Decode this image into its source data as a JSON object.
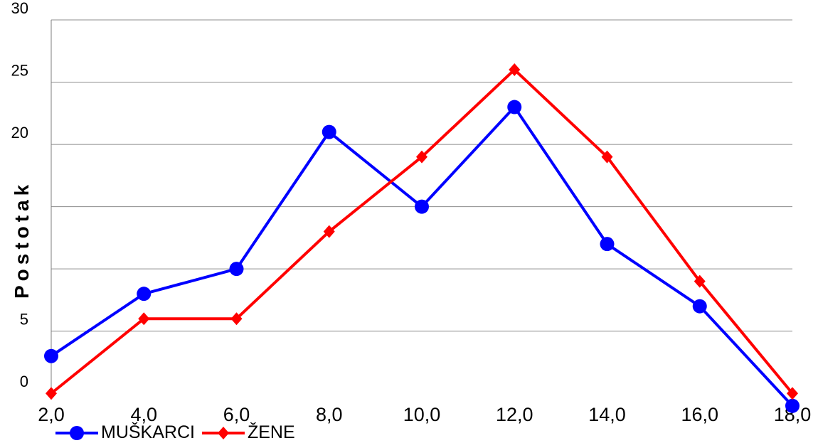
{
  "chart_data": {
    "type": "line",
    "title": "",
    "xlabel": "",
    "ylabel": "Postotak",
    "x": [
      "2,0",
      "4,0",
      "6,0",
      "8,0",
      "10,0",
      "12,0",
      "14,0",
      "16,0",
      "18,0"
    ],
    "ylim": [
      0,
      30
    ],
    "yticks": [
      "0",
      "5",
      "20",
      "25",
      "30"
    ],
    "grid": true,
    "legend_position": "bottom-left",
    "series": [
      {
        "name": "MUŠKARCI",
        "color": "#0000ff",
        "marker": "circle",
        "values": [
          3,
          8,
          10,
          21,
          15,
          23,
          12,
          7,
          -1
        ]
      },
      {
        "name": "ŽENE",
        "color": "#ff0000",
        "marker": "diamond",
        "values": [
          0,
          6,
          6,
          13,
          19,
          26,
          19,
          9,
          0
        ]
      }
    ]
  }
}
